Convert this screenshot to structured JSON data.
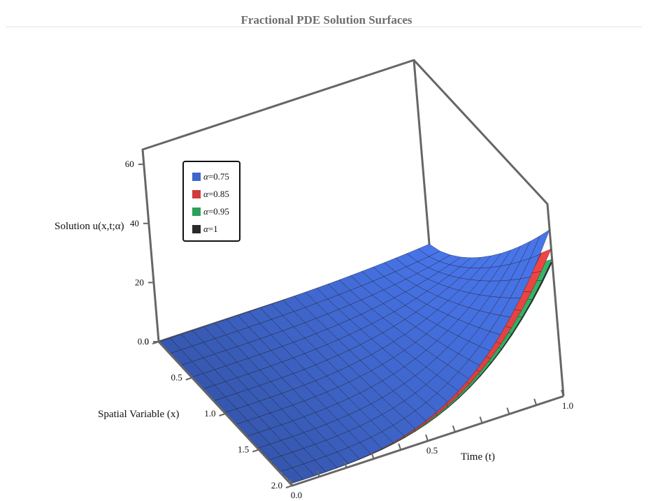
{
  "chart_data": {
    "type": "surface3d",
    "title": "Fractional PDE Solution Surfaces",
    "xlabel": "Time (t)",
    "ylabel": "Spatial Variable (x)",
    "zlabel": "Solution u(x,t;α)",
    "t_range": [
      0,
      1
    ],
    "x_range": [
      0,
      2
    ],
    "z_range": [
      0,
      65
    ],
    "t_ticks": [
      "0.0",
      "0.5",
      "1.0"
    ],
    "x_ticks": [
      "0.0",
      "0.5",
      "1.0",
      "1.5",
      "2.0"
    ],
    "z_ticks": [
      "0",
      "20",
      "40",
      "60"
    ],
    "grid": false,
    "legend_position": "top-left",
    "series": [
      {
        "name": "α=0.75",
        "alpha": 0.75,
        "color": "#3f66cc",
        "max_value": 55.5
      },
      {
        "name": "α=0.85",
        "alpha": 0.85,
        "color": "#d03c3c",
        "max_value": 49
      },
      {
        "name": "α=0.95",
        "alpha": 0.95,
        "color": "#2ba05a",
        "max_value": 45.5
      },
      {
        "name": "α=1",
        "alpha": 1,
        "color": "#2a2a2a",
        "max_value": 44.5
      }
    ]
  },
  "legend": {
    "items": [
      {
        "symbol": "α",
        "value": "=0.75",
        "color": "#3f66cc"
      },
      {
        "symbol": "α",
        "value": "=0.85",
        "color": "#d03c3c"
      },
      {
        "symbol": "α",
        "value": "=0.95",
        "color": "#2ba05a"
      },
      {
        "symbol": "α",
        "value": "=1",
        "color": "#2a2a2a"
      }
    ]
  }
}
